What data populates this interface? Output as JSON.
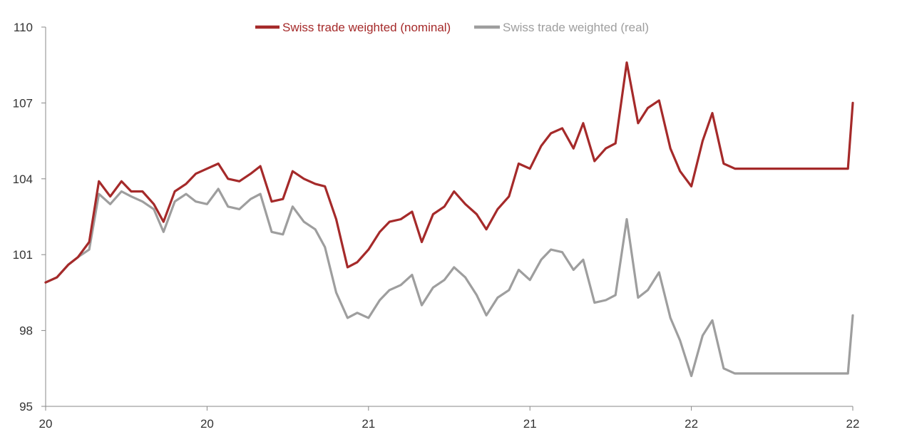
{
  "chart_data": {
    "type": "line",
    "title": "",
    "xlabel": "",
    "ylabel": "",
    "ylim": [
      95,
      110
    ],
    "yticks": [
      "95",
      "98",
      "101",
      "104",
      "107",
      "110"
    ],
    "xticks": [
      "20",
      "20",
      "21",
      "21",
      "22",
      "22"
    ],
    "grid": false,
    "legend": "top-center",
    "colors": {
      "nominal": "#a52a2a",
      "real": "#9e9e9e"
    },
    "series": [
      {
        "name": "Swiss trade weighted (nominal)",
        "x": [
          0,
          0.07,
          0.14,
          0.2,
          0.27,
          0.33,
          0.4,
          0.47,
          0.53,
          0.6,
          0.67,
          0.73,
          0.8,
          0.87,
          0.93,
          1.0,
          1.07,
          1.13,
          1.2,
          1.27,
          1.33,
          1.4,
          1.47,
          1.53,
          1.6,
          1.67,
          1.73,
          1.8,
          1.87,
          1.93,
          2.0,
          2.07,
          2.13,
          2.2,
          2.27,
          2.33,
          2.4,
          2.47,
          2.53,
          2.6,
          2.67,
          2.73,
          2.8,
          2.87,
          2.93,
          3.0,
          3.07,
          3.13,
          3.2,
          3.27,
          3.33,
          3.4,
          3.47,
          3.53,
          3.6,
          3.67,
          3.73,
          3.8,
          3.87,
          3.93,
          4.0,
          4.07,
          4.13,
          4.2,
          4.27,
          4.33,
          4.4,
          4.47,
          4.53,
          4.6,
          4.67,
          4.73,
          4.8,
          4.87,
          4.93,
          4.97,
          5.0
        ],
        "values": [
          99.9,
          100.1,
          100.6,
          100.9,
          101.5,
          103.9,
          103.3,
          103.9,
          103.5,
          103.5,
          103.0,
          102.3,
          103.5,
          103.8,
          104.2,
          104.4,
          104.6,
          104.0,
          103.9,
          104.2,
          104.5,
          103.1,
          103.2,
          104.3,
          104.0,
          103.8,
          103.7,
          102.4,
          100.5,
          100.7,
          101.2,
          101.9,
          102.3,
          102.4,
          102.7,
          101.5,
          102.6,
          102.9,
          103.5,
          103.0,
          102.6,
          102.0,
          102.8,
          103.3,
          104.6,
          104.4,
          105.3,
          105.8,
          106.0,
          105.2,
          106.2,
          104.7,
          105.2,
          105.4,
          108.6,
          106.2,
          106.8,
          107.1,
          105.2,
          104.3,
          103.7,
          105.5,
          106.6,
          104.6,
          104.4,
          104.4,
          104.4,
          104.4,
          104.4,
          104.4,
          104.4,
          104.4,
          104.4,
          104.4,
          104.4,
          104.4,
          107.0
        ]
      },
      {
        "name": "Swiss trade weighted (real)",
        "x": [
          0,
          0.07,
          0.14,
          0.2,
          0.27,
          0.33,
          0.4,
          0.47,
          0.53,
          0.6,
          0.67,
          0.73,
          0.8,
          0.87,
          0.93,
          1.0,
          1.07,
          1.13,
          1.2,
          1.27,
          1.33,
          1.4,
          1.47,
          1.53,
          1.6,
          1.67,
          1.73,
          1.8,
          1.87,
          1.93,
          2.0,
          2.07,
          2.13,
          2.2,
          2.27,
          2.33,
          2.4,
          2.47,
          2.53,
          2.6,
          2.67,
          2.73,
          2.8,
          2.87,
          2.93,
          3.0,
          3.07,
          3.13,
          3.2,
          3.27,
          3.33,
          3.4,
          3.47,
          3.53,
          3.6,
          3.67,
          3.73,
          3.8,
          3.87,
          3.93,
          4.0,
          4.07,
          4.13,
          4.2,
          4.27,
          4.33,
          4.4,
          4.47,
          4.53,
          4.6,
          4.67,
          4.73,
          4.8,
          4.87,
          4.93,
          4.97,
          5.0
        ],
        "values": [
          99.9,
          100.1,
          100.6,
          100.9,
          101.2,
          103.4,
          103.0,
          103.5,
          103.3,
          103.1,
          102.8,
          101.9,
          103.1,
          103.4,
          103.1,
          103.0,
          103.6,
          102.9,
          102.8,
          103.2,
          103.4,
          101.9,
          101.8,
          102.9,
          102.3,
          102.0,
          101.3,
          99.5,
          98.5,
          98.7,
          98.5,
          99.2,
          99.6,
          99.8,
          100.2,
          99.0,
          99.7,
          100.0,
          100.5,
          100.1,
          99.4,
          98.6,
          99.3,
          99.6,
          100.4,
          100.0,
          100.8,
          101.2,
          101.1,
          100.4,
          100.8,
          99.1,
          99.2,
          99.4,
          102.4,
          99.3,
          99.6,
          100.3,
          98.5,
          97.6,
          96.2,
          97.8,
          98.4,
          96.5,
          96.3,
          96.3,
          96.3,
          96.3,
          96.3,
          96.3,
          96.3,
          96.3,
          96.3,
          96.3,
          96.3,
          96.3,
          98.6
        ]
      }
    ]
  }
}
